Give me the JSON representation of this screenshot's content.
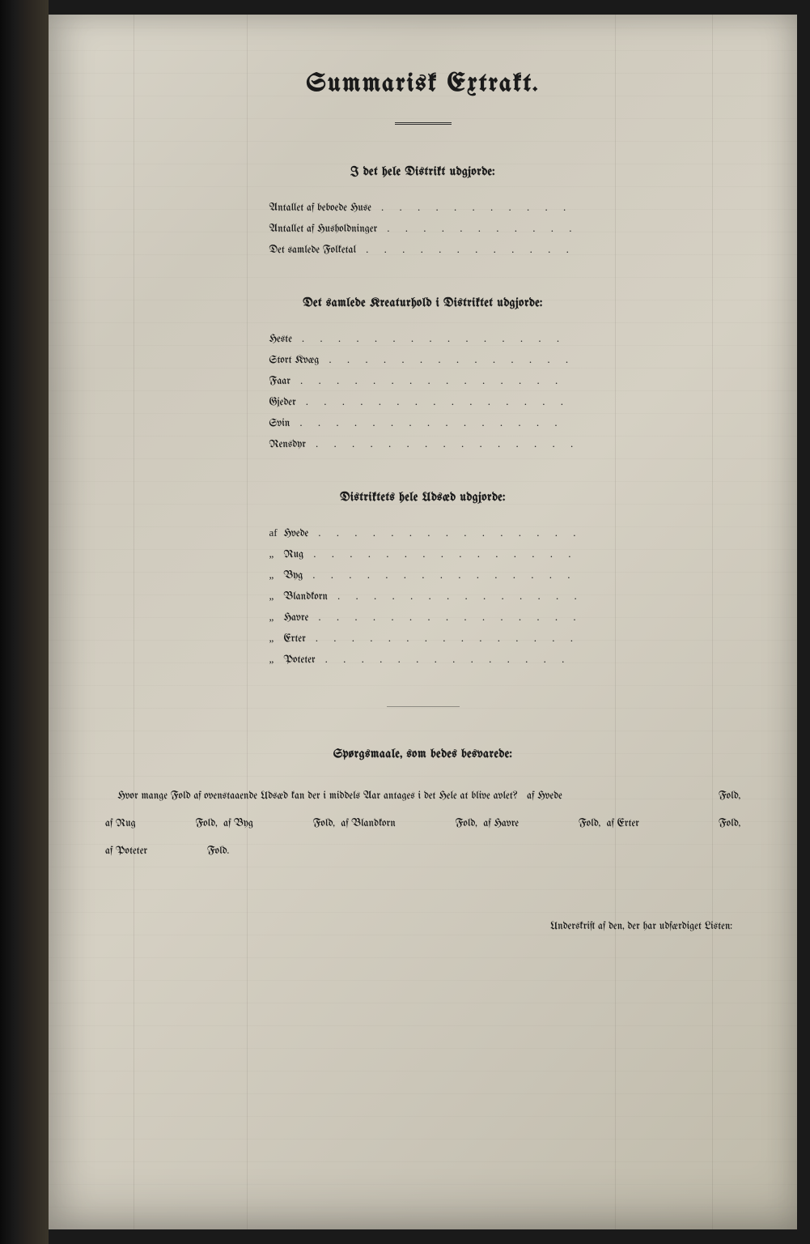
{
  "page": {
    "title": "Summarisk Extrakt.",
    "background_color": "#d5d0c3",
    "text_color": "#1a1a1a",
    "title_fontsize": 32,
    "heading_fontsize": 15,
    "body_fontsize": 13
  },
  "section1": {
    "heading": "I det hele Distrikt udgjorde:",
    "items": [
      {
        "label": "Antallet af beboede Huse"
      },
      {
        "label": "Antallet af Husholdninger"
      },
      {
        "label": "Det samlede Folketal"
      }
    ]
  },
  "section2": {
    "heading": "Det samlede Kreaturhold i Distriktet udgjorde:",
    "items": [
      {
        "label": "Heste"
      },
      {
        "label": "Stort Kvæg"
      },
      {
        "label": "Faar"
      },
      {
        "label": "Gjeder"
      },
      {
        "label": "Svin"
      },
      {
        "label": "Rensdyr"
      }
    ]
  },
  "section3": {
    "heading": "Distriktets hele Udsæd udgjorde:",
    "prefix_first": "af",
    "prefix_rest": "„",
    "items": [
      {
        "label": "Hvede"
      },
      {
        "label": "Rug"
      },
      {
        "label": "Byg"
      },
      {
        "label": "Blandkorn"
      },
      {
        "label": "Havre"
      },
      {
        "label": "Erter"
      },
      {
        "label": "Poteter"
      }
    ]
  },
  "section4": {
    "heading": "Spørgsmaale, som bedes besvarede:",
    "intro": "Hvor mange Fold af ovenstaaende Udsæd kan der i middels Aar antages i det Hele at blive avlet?",
    "parts": [
      {
        "pre": "af",
        "name": "Hvede",
        "after": "Fold,"
      },
      {
        "pre": "af",
        "name": "Rug",
        "after": "Fold,"
      },
      {
        "pre": "af",
        "name": "Byg",
        "after": "Fold,"
      },
      {
        "pre": "af",
        "name": "Blandkorn",
        "after": "Fold,"
      },
      {
        "pre": "af",
        "name": "Havre",
        "after": "Fold,"
      },
      {
        "pre": "af",
        "name": "Erter",
        "after": "Fold,"
      },
      {
        "pre": "af",
        "name": "Poteter",
        "after": "Fold."
      }
    ]
  },
  "signature": "Underskrift af den, der har udfærdiget Listen:",
  "dots": ". . . . . . . . . . . . . . ."
}
